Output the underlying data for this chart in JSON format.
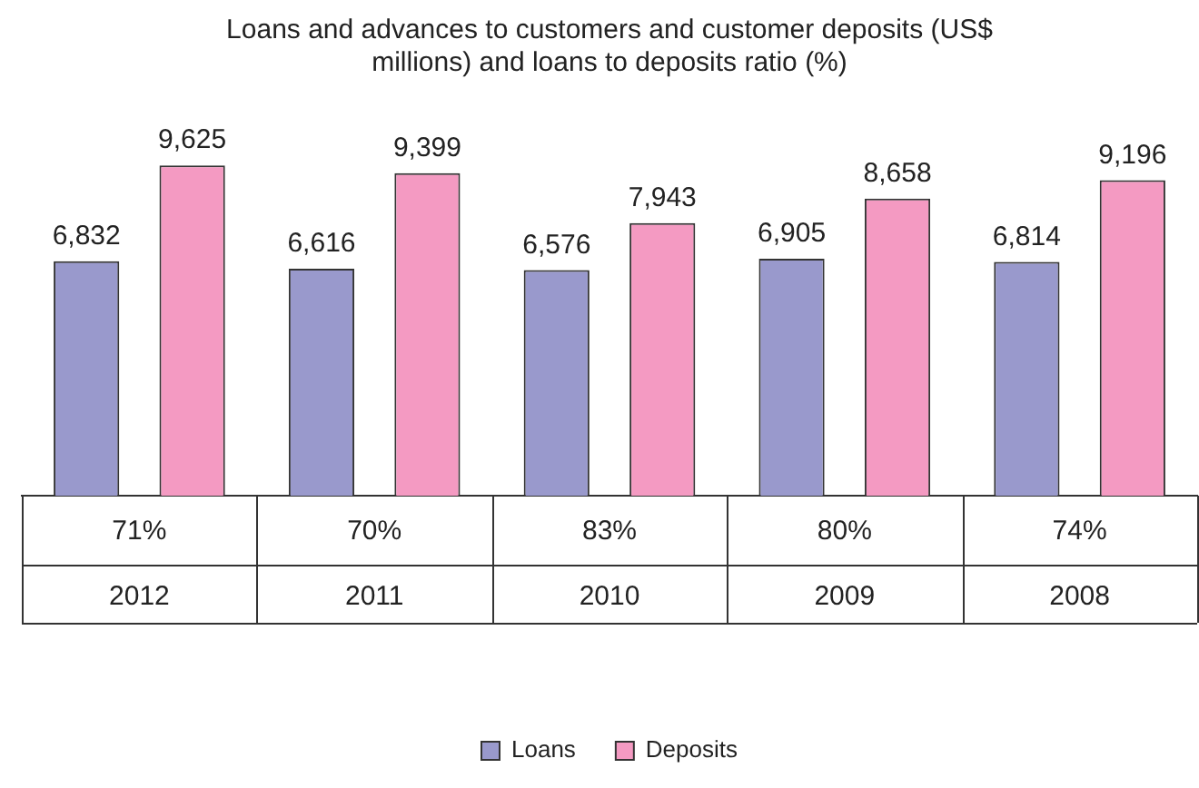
{
  "chart_data": {
    "type": "bar",
    "title": "Loans and advances to customers and customer deposits (US$ millions) and loans to deposits ratio (%)",
    "categories": [
      "2012",
      "2011",
      "2010",
      "2009",
      "2008"
    ],
    "series": [
      {
        "name": "Loans",
        "color": "#9999cc",
        "values": [
          6832,
          6616,
          6576,
          6905,
          6814
        ],
        "value_labels": [
          "6,832",
          "6,616",
          "6,576",
          "6,905",
          "6,814"
        ]
      },
      {
        "name": "Deposits",
        "color": "#f49ac2",
        "values": [
          9625,
          9399,
          7943,
          8658,
          9196
        ],
        "value_labels": [
          "9,625",
          "9,399",
          "7,943",
          "8,658",
          "9,196"
        ]
      }
    ],
    "annotations": [
      "71%",
      "70%",
      "83%",
      "80%",
      "74%"
    ],
    "grid": false,
    "legend": "bottom",
    "tick_labels": "x"
  }
}
